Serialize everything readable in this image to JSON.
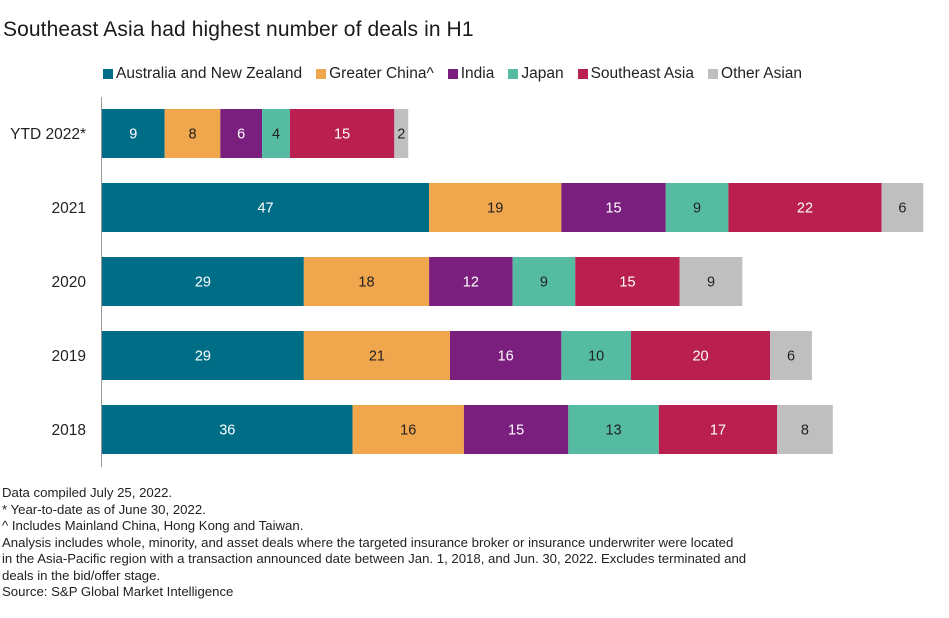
{
  "chart_data": {
    "type": "bar",
    "orientation": "horizontal",
    "stacked": true,
    "title": "Southeast Asia had highest number of deals in H1",
    "xlabel": "",
    "ylabel": "",
    "categories": [
      "YTD 2022*",
      "2021",
      "2020",
      "2019",
      "2018"
    ],
    "series": [
      {
        "name": "Australia and New Zealand",
        "color": "#006d86",
        "label_color": "#ffffff",
        "values": [
          9,
          47,
          29,
          29,
          36
        ]
      },
      {
        "name": "Greater China^",
        "color": "#f0a64c",
        "label_color": "#222222",
        "values": [
          8,
          19,
          18,
          21,
          16
        ]
      },
      {
        "name": "India",
        "color": "#7a1f7e",
        "label_color": "#ffffff",
        "values": [
          6,
          15,
          12,
          16,
          15
        ]
      },
      {
        "name": "Japan",
        "color": "#55bca1",
        "label_color": "#222222",
        "values": [
          4,
          9,
          9,
          10,
          13
        ]
      },
      {
        "name": "Southeast Asia",
        "color": "#b91f4f",
        "label_color": "#ffffff",
        "values": [
          15,
          22,
          15,
          20,
          17
        ]
      },
      {
        "name": "Other Asian",
        "color": "#bfbfbf",
        "label_color": "#222222",
        "values": [
          2,
          6,
          9,
          6,
          8
        ]
      }
    ],
    "xlim": [
      0,
      120
    ],
    "grid": false,
    "legend_position": "top"
  },
  "footnotes": [
    "Data compiled July 25, 2022.",
    "* Year-to-date as of June 30, 2022.",
    "^ Includes Mainland China, Hong Kong and Taiwan.",
    "Analysis includes whole, minority, and asset deals where the targeted insurance broker or insurance underwriter were located",
    "in the Asia-Pacific region with a transaction announced date between Jan. 1, 2018, and Jun. 30, 2022. Excludes terminated and",
    "deals in the bid/offer stage.",
    "Source: S&P Global Market Intelligence"
  ]
}
